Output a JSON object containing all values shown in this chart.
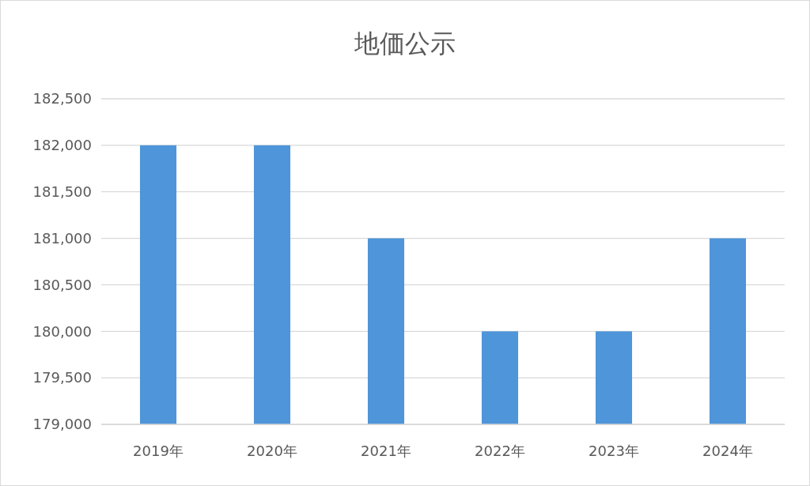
{
  "chart_data": {
    "type": "bar",
    "title": "地価公示",
    "categories": [
      "2019年",
      "2020年",
      "2021年",
      "2022年",
      "2023年",
      "2024年"
    ],
    "values": [
      182000,
      182000,
      181000,
      180000,
      180000,
      181000
    ],
    "color": "#4e95d9",
    "ylim": [
      179000,
      182500
    ],
    "yticks": [
      {
        "value": 179000,
        "label": "179,000"
      },
      {
        "value": 179500,
        "label": "179,500"
      },
      {
        "value": 180000,
        "label": "180,000"
      },
      {
        "value": 180500,
        "label": "180,500"
      },
      {
        "value": 181000,
        "label": "181,000"
      },
      {
        "value": 181500,
        "label": "181,500"
      },
      {
        "value": 182000,
        "label": "182,000"
      },
      {
        "value": 182500,
        "label": "182,500"
      }
    ],
    "grid": "y"
  }
}
